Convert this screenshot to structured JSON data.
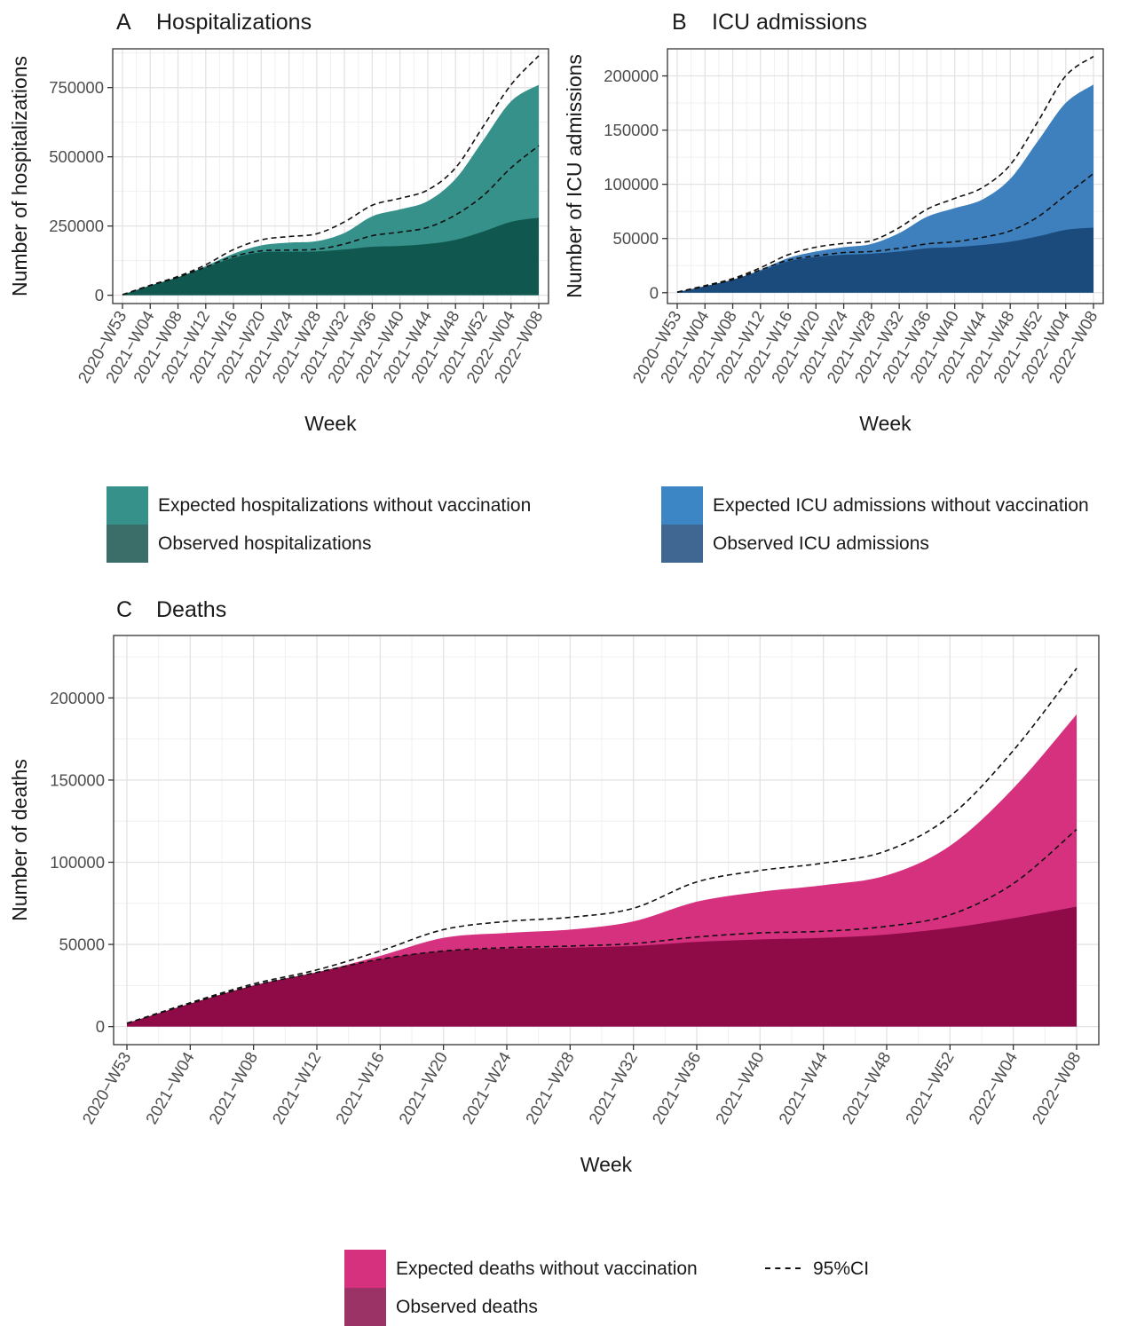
{
  "chart_data": [
    {
      "type": "area",
      "panel_letter": "A",
      "title": "Hospitalizations",
      "xlabel": "Week",
      "ylabel": "Number of hospitalizations",
      "x": [
        "2020-W53",
        "2021-W04",
        "2021-W08",
        "2021-W12",
        "2021-W16",
        "2021-W20",
        "2021-W24",
        "2021-W28",
        "2021-W32",
        "2021-W36",
        "2021-W40",
        "2021-W44",
        "2021-W48",
        "2021-W52",
        "2022-W04",
        "2022-W08"
      ],
      "x_tick_labels": [
        "2020−W53",
        "2021−W04",
        "2021−W08",
        "2021−W12",
        "2021−W16",
        "2021−W20",
        "2021−W24",
        "2021−W28",
        "2021−W32",
        "2021−W36",
        "2021−W40",
        "2021−W44",
        "2021−W48",
        "2021−W52",
        "2022−W04",
        "2022−W08"
      ],
      "y_ticks": [
        0,
        250000,
        500000,
        750000
      ],
      "ylim": [
        -30000,
        890000
      ],
      "grid": true,
      "series": [
        {
          "name": "Expected hospitalizations without vaccination",
          "color": "#35918a",
          "values": [
            2000,
            35000,
            65000,
            105000,
            150000,
            180000,
            190000,
            195000,
            225000,
            285000,
            310000,
            340000,
            420000,
            560000,
            700000,
            760000
          ]
        },
        {
          "name": "Observed hospitalizations",
          "color": "#0f574f",
          "values": [
            2000,
            35000,
            65000,
            100000,
            135000,
            155000,
            157000,
            158000,
            165000,
            175000,
            178000,
            185000,
            200000,
            230000,
            265000,
            280000
          ]
        },
        {
          "name": "95%CI",
          "color": "#111111",
          "style": "dashed",
          "values": [
            2000,
            36000,
            68000,
            110000,
            165000,
            200000,
            212000,
            222000,
            265000,
            325000,
            350000,
            380000,
            460000,
            610000,
            760000,
            865000
          ]
        },
        {
          "name": "95%CI",
          "color": "#111111",
          "style": "dashed",
          "values": [
            2000,
            35000,
            65000,
            102000,
            140000,
            160000,
            163000,
            166000,
            185000,
            215000,
            228000,
            245000,
            290000,
            360000,
            460000,
            540000
          ]
        }
      ]
    },
    {
      "type": "area",
      "panel_letter": "B",
      "title": "ICU admissions",
      "xlabel": "Week",
      "ylabel": "Number of ICU admissions",
      "x": [
        "2020-W53",
        "2021-W04",
        "2021-W08",
        "2021-W12",
        "2021-W16",
        "2021-W20",
        "2021-W24",
        "2021-W28",
        "2021-W32",
        "2021-W36",
        "2021-W40",
        "2021-W44",
        "2021-W48",
        "2021-W52",
        "2022-W04",
        "2022-W08"
      ],
      "x_tick_labels": [
        "2020−W53",
        "2021−W04",
        "2021−W08",
        "2021−W12",
        "2021−W16",
        "2021−W20",
        "2021−W24",
        "2021−W28",
        "2021−W32",
        "2021−W36",
        "2021−W40",
        "2021−W44",
        "2021−W48",
        "2021−W52",
        "2022−W04",
        "2022−W08"
      ],
      "y_ticks": [
        0,
        50000,
        100000,
        150000,
        200000
      ],
      "ylim": [
        -10000,
        225000
      ],
      "grid": true,
      "series": [
        {
          "name": "Expected ICU admissions without vaccination",
          "color": "#3d80bd",
          "values": [
            500,
            6000,
            12000,
            21000,
            32000,
            38000,
            42000,
            45000,
            55000,
            70000,
            78000,
            86000,
            105000,
            140000,
            175000,
            192000
          ]
        },
        {
          "name": "Observed ICU admissions",
          "color": "#1b4a7d",
          "values": [
            500,
            6000,
            12000,
            20000,
            29000,
            33000,
            35000,
            36000,
            38000,
            41000,
            42000,
            44000,
            47000,
            52000,
            58000,
            60000
          ]
        },
        {
          "name": "95%CI",
          "color": "#111111",
          "style": "dashed",
          "values": [
            500,
            6500,
            13000,
            23000,
            35000,
            42000,
            45500,
            48000,
            60000,
            77000,
            87000,
            97000,
            118000,
            158000,
            200000,
            218000
          ]
        },
        {
          "name": "95%CI",
          "color": "#111111",
          "style": "dashed",
          "values": [
            500,
            6000,
            12000,
            21000,
            30000,
            34000,
            37000,
            38000,
            41000,
            45000,
            47000,
            51000,
            57000,
            70000,
            90000,
            110000
          ]
        }
      ]
    },
    {
      "type": "area",
      "panel_letter": "C",
      "title": "Deaths",
      "xlabel": "Week",
      "ylabel": "Number of deaths",
      "x": [
        "2020-W53",
        "2021-W04",
        "2021-W08",
        "2021-W12",
        "2021-W16",
        "2021-W20",
        "2021-W24",
        "2021-W28",
        "2021-W32",
        "2021-W36",
        "2021-W40",
        "2021-W44",
        "2021-W48",
        "2021-W52",
        "2022-W04",
        "2022-W08"
      ],
      "x_tick_labels": [
        "2020−W53",
        "2021−W04",
        "2021−W08",
        "2021−W12",
        "2021−W16",
        "2021−W20",
        "2021−W24",
        "2021−W28",
        "2021−W32",
        "2021−W36",
        "2021−W40",
        "2021−W44",
        "2021−W48",
        "2021−W52",
        "2022−W04",
        "2022−W08"
      ],
      "y_ticks": [
        0,
        50000,
        100000,
        150000,
        200000
      ],
      "ylim": [
        -11000,
        238000
      ],
      "grid": true,
      "series": [
        {
          "name": "Expected deaths without vaccination",
          "color": "#d6317e",
          "values": [
            2000,
            14000,
            25000,
            33000,
            43000,
            54000,
            57000,
            59000,
            64000,
            76000,
            82000,
            86000,
            92000,
            110000,
            145000,
            190000
          ]
        },
        {
          "name": "Observed deaths",
          "color": "#8e0b48",
          "values": [
            2000,
            14000,
            25000,
            33000,
            41000,
            46000,
            47500,
            48000,
            49000,
            51500,
            53000,
            54000,
            56000,
            60000,
            66000,
            73000
          ]
        },
        {
          "name": "95%CI",
          "color": "#111111",
          "style": "dashed",
          "values": [
            2000,
            14500,
            26000,
            34500,
            46000,
            59000,
            64000,
            66500,
            72000,
            88000,
            95000,
            99500,
            107000,
            128000,
            168000,
            218000
          ]
        },
        {
          "name": "95%CI",
          "color": "#111111",
          "style": "dashed",
          "values": [
            2000,
            14000,
            25000,
            33000,
            41000,
            46000,
            48000,
            49000,
            50500,
            54500,
            57000,
            58000,
            61000,
            68000,
            87000,
            120000
          ]
        }
      ]
    }
  ],
  "legends": {
    "hosp": {
      "expected": "Expected hospitalizations without vaccination",
      "observed": "Observed hospitalizations",
      "expected_color": "#35918a",
      "observed_color": "#3b6e69"
    },
    "icu": {
      "expected": "Expected ICU admissions without vaccination",
      "observed": "Observed ICU admissions",
      "expected_color": "#3d86c6",
      "observed_color": "#3f6791"
    },
    "deaths": {
      "expected": "Expected deaths without vaccination",
      "observed": "Observed deaths",
      "expected_color": "#d6317e",
      "observed_color": "#9c3366",
      "ci": "95%CI"
    }
  }
}
